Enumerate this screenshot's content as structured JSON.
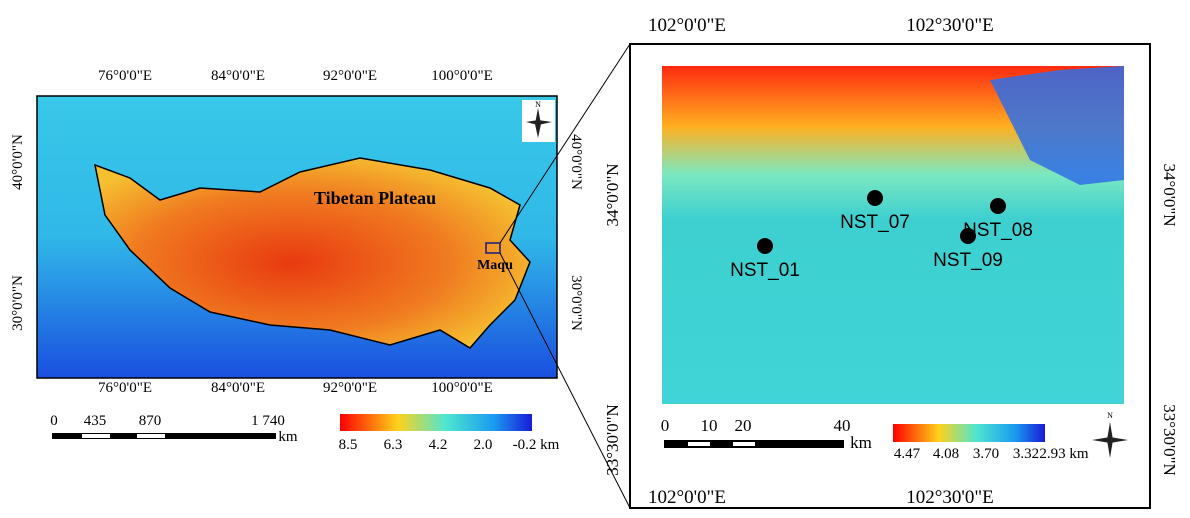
{
  "left_map": {
    "lon_labels": [
      "76°0'0\"E",
      "84°0'0\"E",
      "92°0'0\"E",
      "100°0'0\"E"
    ],
    "lat_labels": [
      "40°0'0\"N",
      "30°0'0\"N"
    ],
    "region_label": "Tibetan Plateau",
    "site_label": "Maqu",
    "north": "N",
    "scale_labels": [
      "0",
      "435",
      "870",
      "1 740"
    ],
    "scale_unit": "km",
    "legend_labels": [
      "8.5",
      "6.3",
      "4.2",
      "2.0",
      "-0.2 km"
    ]
  },
  "right_map": {
    "lon_labels": [
      "102°0'0\"E",
      "102°30'0\"E"
    ],
    "lat_labels": [
      "34°0'0\"N",
      "33°30'0\"N"
    ],
    "stations": [
      "NST_07",
      "NST_08",
      "NST_09",
      "NST_01"
    ],
    "north": "N",
    "scale_labels": [
      "0",
      "10",
      "20",
      "40"
    ],
    "scale_unit": "km",
    "legend_labels": [
      "4.47",
      "4.08",
      "3.70",
      "3.32",
      "2.93 km"
    ]
  }
}
